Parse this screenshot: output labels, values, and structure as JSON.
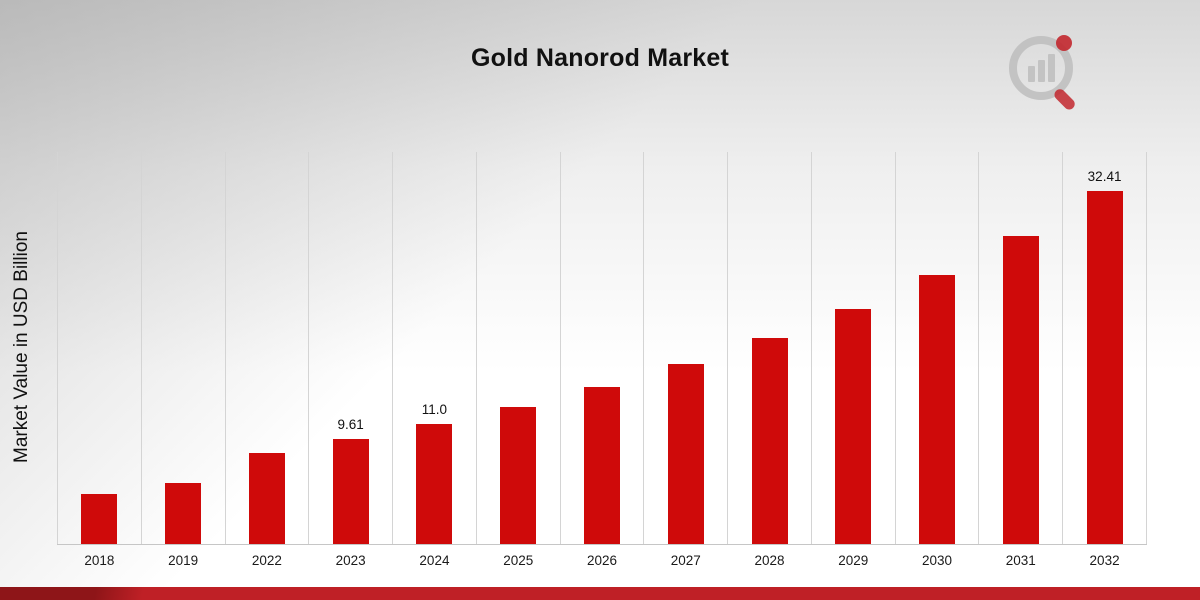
{
  "title": "Gold Nanorod Market",
  "y_axis_label": "Market Value in USD Billion",
  "brand": {
    "logo_icon": "bar-chart-magnifier-logo",
    "logo_gray": "#bdbdbd",
    "logo_red": "#c2272e"
  },
  "accent": {
    "bar_color": "#cf0a0a",
    "footer_dark": "#8e1518",
    "footer_light": "#bf2026"
  },
  "chart_data": {
    "type": "bar",
    "title": "Gold Nanorod Market",
    "xlabel": "",
    "ylabel": "Market Value in USD Billion",
    "ylim": [
      0,
      36
    ],
    "grid": "vertical",
    "legend": "none",
    "bar_color": "#cf0a0a",
    "categories": [
      "2018",
      "2019",
      "2022",
      "2023",
      "2024",
      "2025",
      "2026",
      "2027",
      "2028",
      "2029",
      "2030",
      "2031",
      "2032"
    ],
    "values": [
      4.6,
      5.6,
      8.4,
      9.61,
      11.0,
      12.6,
      14.4,
      16.5,
      18.9,
      21.6,
      24.7,
      28.3,
      32.41
    ],
    "data_labels": {
      "2023": "9.61",
      "2024": "11.0",
      "2032": "32.41"
    }
  }
}
